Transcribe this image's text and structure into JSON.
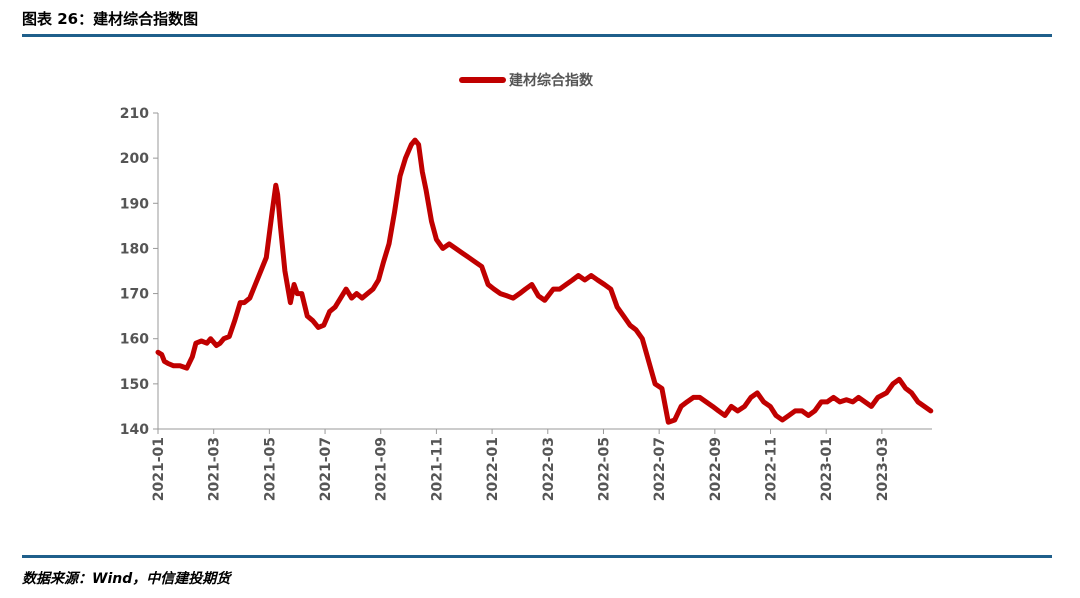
{
  "figure": {
    "title": "图表 26：建材综合指数图",
    "source": "数据来源：Wind，中信建投期货"
  },
  "colors": {
    "series": "#c00000",
    "rule": "#1f5f8b",
    "axis": "#999999",
    "text": "#555555"
  },
  "chart_data": {
    "type": "line",
    "title": "",
    "xlabel": "",
    "ylabel": "",
    "legend": "top-center",
    "grid": false,
    "ylim": [
      140,
      210
    ],
    "yticks": [
      140,
      150,
      160,
      170,
      180,
      190,
      200,
      210
    ],
    "xlim": [
      "2021-01",
      "2023-04.8"
    ],
    "xticks": [
      "2021-01",
      "2021-03",
      "2021-05",
      "2021-07",
      "2021-09",
      "2021-11",
      "2022-01",
      "2022-03",
      "2022-05",
      "2022-07",
      "2022-09",
      "2022-11",
      "2023-01",
      "2023-03"
    ],
    "series": [
      {
        "name": "建材综合指数",
        "x": [
          "2021-01-01",
          "2021-01-05",
          "2021-01-08",
          "2021-01-12",
          "2021-01-18",
          "2021-01-25",
          "2021-02-02",
          "2021-02-08",
          "2021-02-12",
          "2021-02-18",
          "2021-02-24",
          "2021-02-28",
          "2021-03-04",
          "2021-03-08",
          "2021-03-12",
          "2021-03-18",
          "2021-03-24",
          "2021-03-30",
          "2021-04-04",
          "2021-04-10",
          "2021-04-16",
          "2021-04-22",
          "2021-04-28",
          "2021-05-04",
          "2021-05-08",
          "2021-05-10",
          "2021-05-13",
          "2021-05-18",
          "2021-05-24",
          "2021-05-28",
          "2021-06-01",
          "2021-06-06",
          "2021-06-12",
          "2021-06-18",
          "2021-06-24",
          "2021-06-30",
          "2021-07-06",
          "2021-07-12",
          "2021-07-18",
          "2021-07-24",
          "2021-07-30",
          "2021-08-05",
          "2021-08-11",
          "2021-08-17",
          "2021-08-23",
          "2021-08-29",
          "2021-09-04",
          "2021-09-10",
          "2021-09-16",
          "2021-09-22",
          "2021-09-28",
          "2021-10-04",
          "2021-10-08",
          "2021-10-12",
          "2021-10-16",
          "2021-10-20",
          "2021-10-26",
          "2021-11-01",
          "2021-11-08",
          "2021-11-15",
          "2021-11-22",
          "2021-11-29",
          "2021-12-06",
          "2021-12-13",
          "2021-12-20",
          "2021-12-27",
          "2022-01-03",
          "2022-01-10",
          "2022-01-17",
          "2022-01-24",
          "2022-01-31",
          "2022-02-07",
          "2022-02-14",
          "2022-02-21",
          "2022-02-28",
          "2022-03-07",
          "2022-03-14",
          "2022-03-21",
          "2022-03-28",
          "2022-04-04",
          "2022-04-11",
          "2022-04-18",
          "2022-04-25",
          "2022-05-02",
          "2022-05-09",
          "2022-05-16",
          "2022-05-23",
          "2022-05-30",
          "2022-06-06",
          "2022-06-13",
          "2022-06-20",
          "2022-06-27",
          "2022-07-04",
          "2022-07-11",
          "2022-07-18",
          "2022-07-25",
          "2022-08-01",
          "2022-08-08",
          "2022-08-15",
          "2022-08-22",
          "2022-08-29",
          "2022-09-05",
          "2022-09-12",
          "2022-09-19",
          "2022-09-26",
          "2022-10-03",
          "2022-10-10",
          "2022-10-17",
          "2022-10-24",
          "2022-10-31",
          "2022-11-07",
          "2022-11-14",
          "2022-11-21",
          "2022-11-28",
          "2022-12-05",
          "2022-12-12",
          "2022-12-19",
          "2022-12-26",
          "2023-01-02",
          "2023-01-09",
          "2023-01-16",
          "2023-01-23",
          "2023-01-30",
          "2023-02-06",
          "2023-02-13",
          "2023-02-20",
          "2023-02-27",
          "2023-03-06",
          "2023-03-13",
          "2023-03-20",
          "2023-03-27",
          "2023-04-03",
          "2023-04-10",
          "2023-04-17",
          "2023-04-24"
        ],
        "values": [
          157,
          156.5,
          155,
          154.5,
          154,
          154,
          153.5,
          156,
          159,
          159.5,
          159,
          160,
          158.5,
          159,
          160,
          160.5,
          164,
          168,
          168,
          169,
          172,
          175,
          178,
          188,
          194,
          192,
          185,
          175,
          168,
          172,
          170,
          170,
          165,
          164,
          162.5,
          163,
          166,
          167,
          169,
          171,
          169,
          170,
          169,
          170,
          171,
          173,
          177,
          181,
          188,
          196,
          200,
          203,
          204,
          203,
          197,
          193,
          186,
          182,
          180,
          181,
          180,
          179,
          178,
          177,
          176,
          172,
          171,
          170,
          169.5,
          169,
          170,
          171,
          172,
          169.5,
          168.5,
          171,
          171,
          172,
          173,
          174,
          173,
          174,
          173,
          172,
          171,
          167,
          165,
          163,
          162,
          160,
          155,
          150,
          149,
          141.5,
          142,
          145,
          146,
          147,
          147,
          146,
          145,
          144,
          143,
          145,
          144,
          145,
          147,
          148,
          146,
          145,
          143,
          142,
          143,
          144,
          144,
          143,
          144,
          146,
          146,
          147,
          146,
          146.5,
          146,
          147,
          146,
          145,
          147,
          148,
          150,
          151,
          149,
          148,
          146,
          145,
          144
        ]
      }
    ]
  }
}
